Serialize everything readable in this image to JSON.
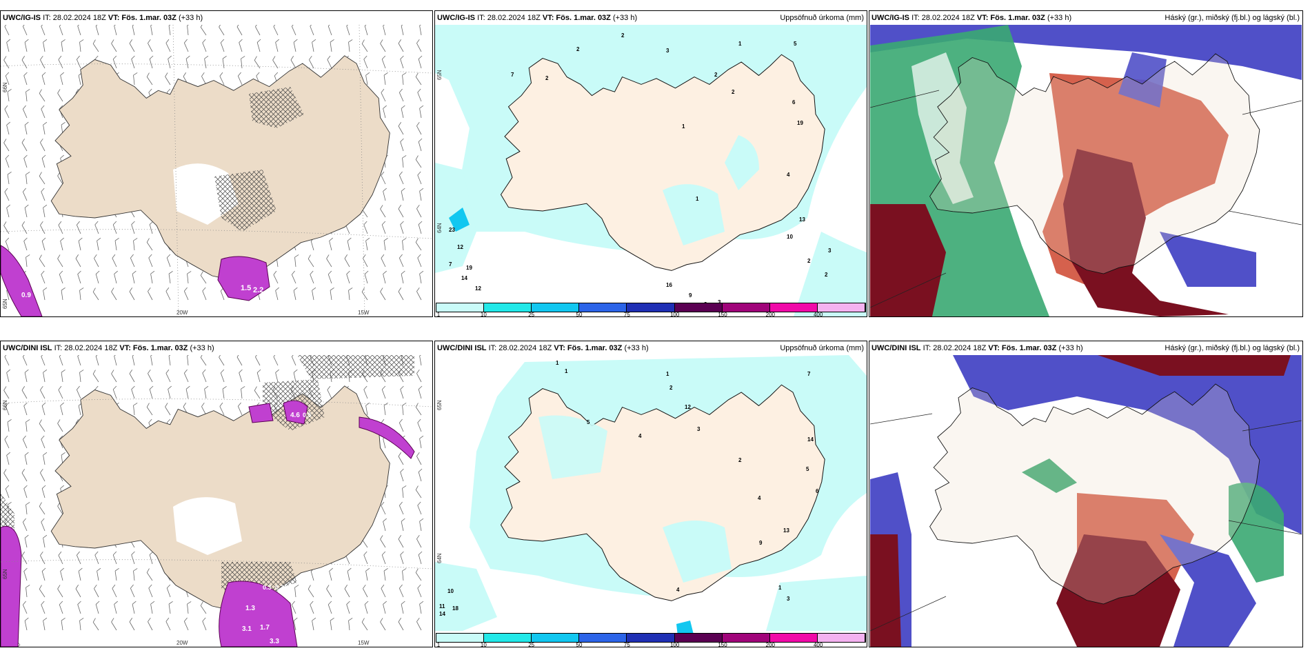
{
  "panels": [
    {
      "id": "p1",
      "model": "UWC/IG-IS",
      "init_label": "IT: 28.02.2024 18Z",
      "valid_label": "VT: Fös. 1.mar. 03Z",
      "lead": "(+33 h)",
      "right_title": "",
      "lat_labels": [
        "66N",
        "65N"
      ],
      "lon_labels": [
        "20W",
        "15W"
      ],
      "values": [
        "1.5",
        "2.2",
        "0.9"
      ]
    },
    {
      "id": "p2",
      "model": "UWC/IG-IS",
      "init_label": "IT: 28.02.2024 18Z",
      "valid_label": "VT: Fös. 1.mar. 03Z",
      "lead": "(+33 h)",
      "right_title": "Uppsöfnuð úrkoma (mm)",
      "lat_labels": [
        "65N",
        "64N"
      ],
      "lon_labels": [],
      "values": [
        "2",
        "2",
        "3",
        "2",
        "2",
        "1",
        "5",
        "7",
        "2",
        "1",
        "6",
        "19",
        "4",
        "1",
        "23",
        "12",
        "7",
        "19",
        "14",
        "12",
        "16",
        "9",
        "13",
        "10",
        "2",
        "3",
        "3",
        "2",
        "3"
      ],
      "colorbar": {
        "ticks": [
          "1",
          "10",
          "25",
          "50",
          "75",
          "100",
          "150",
          "200",
          "400"
        ],
        "colors": [
          "#c9fbf8",
          "#22e8e8",
          "#12c7f0",
          "#2c64e8",
          "#1f2fb4",
          "#5a0052",
          "#a0047a",
          "#f00aa8",
          "#f4b2f0"
        ]
      }
    },
    {
      "id": "p3",
      "model": "UWC/IG-IS",
      "init_label": "IT: 28.02.2024 18Z",
      "valid_label": "VT: Fös. 1.mar. 03Z",
      "lead": "(+33 h)",
      "right_title": "Háský (gr.), miðský (fj.bl.) og lágský (bl.)"
    },
    {
      "id": "p4",
      "model": "UWC/DINI ISL",
      "init_label": "IT: 28.02.2024 18Z",
      "valid_label": "VT: Fös. 1.mar. 03Z",
      "lead": "(+33 h)",
      "right_title": "",
      "lat_labels": [
        "66N",
        "65N"
      ],
      "lon_labels": [
        "20W",
        "15W"
      ],
      "values": [
        "4.6",
        "0.5",
        "0.3",
        "0.3",
        "3.1",
        "1.7",
        "3.3",
        "1.3"
      ]
    },
    {
      "id": "p5",
      "model": "UWC/DINI ISL",
      "init_label": "IT: 28.02.2024 18Z",
      "valid_label": "VT: Fös. 1.mar. 03Z",
      "lead": "(+33 h)",
      "right_title": "Uppsöfnuð úrkoma (mm)",
      "lat_labels": [
        "65N",
        "64N"
      ],
      "lon_labels": [],
      "values": [
        "1",
        "1",
        "1",
        "2",
        "7",
        "12",
        "5",
        "4",
        "3",
        "2",
        "14",
        "5",
        "6",
        "4",
        "13",
        "10",
        "11",
        "18",
        "14",
        "9",
        "4",
        "1",
        "3"
      ],
      "colorbar": {
        "ticks": [
          "1",
          "10",
          "25",
          "50",
          "75",
          "100",
          "150",
          "200",
          "400"
        ],
        "colors": [
          "#c9fbf8",
          "#22e8e8",
          "#12c7f0",
          "#2c64e8",
          "#1f2fb4",
          "#5a0052",
          "#a0047a",
          "#f00aa8",
          "#f4b2f0"
        ]
      }
    },
    {
      "id": "p6",
      "model": "UWC/DINI ISL",
      "init_label": "IT: 28.02.2024 18Z",
      "valid_label": "VT: Fös. 1.mar. 03Z",
      "lead": "(+33 h)",
      "right_title": "Háský (gr.), miðský (fj.bl.) og lágský (bl.)"
    }
  ],
  "colors": {
    "land": "#ecdcc8",
    "precip_light": "#c9fbf8",
    "high_cloud": "#3aa872",
    "mid_cloud": "#7a1020",
    "low_cloud": "#5050c8",
    "wind_barb": "#555555",
    "snow_hatch": "#444444",
    "precip_magenta": "#c040d0"
  }
}
